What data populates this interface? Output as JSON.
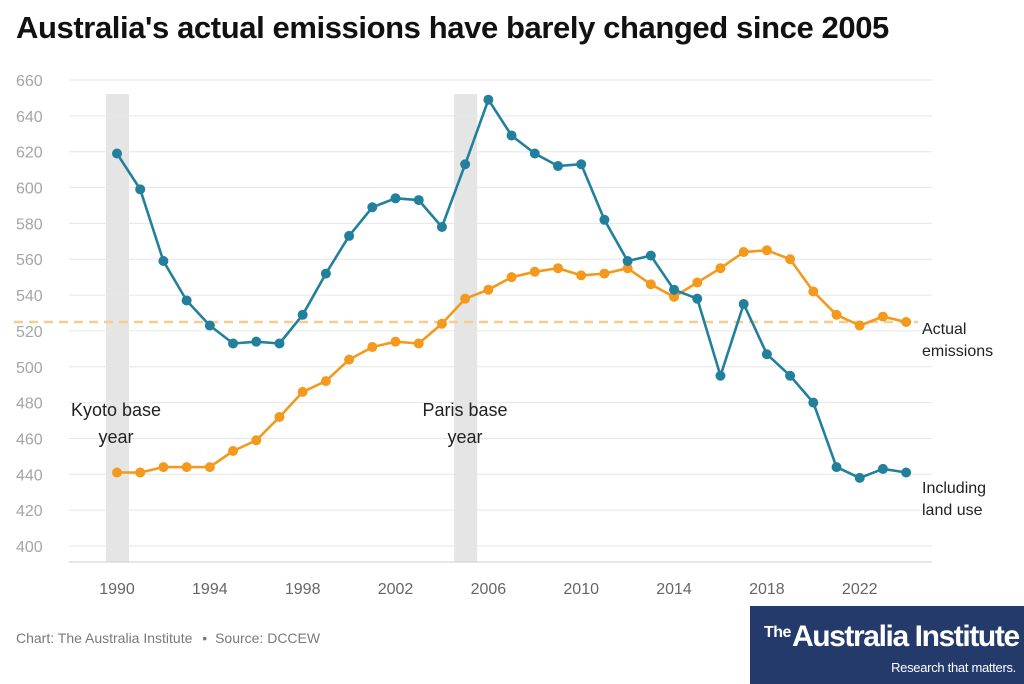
{
  "title": "Australia's actual emissions have barely changed since 2005",
  "source": {
    "chart_credit": "Chart: The Australia Institute",
    "separator": "•",
    "data_source": "Source: DCCEW"
  },
  "logo": {
    "the": "The",
    "name": "Australia Institute",
    "tagline": "Research that matters."
  },
  "colors": {
    "actual": "#f39a1e",
    "landuse": "#23809c",
    "reference": "#f7cd8d",
    "band": "#e5e5e5",
    "grid": "#e6e6e6",
    "background": "#ffffff"
  },
  "chart_data": {
    "type": "line",
    "title": "Australia's actual emissions have barely changed since 2005",
    "xlabel": "",
    "ylabel": "",
    "xlim": [
      1988.5,
      2024.5
    ],
    "ylim": [
      400,
      660
    ],
    "yticks": [
      400,
      420,
      440,
      460,
      480,
      500,
      520,
      540,
      560,
      580,
      600,
      620,
      640,
      660
    ],
    "xticks": [
      1990,
      1994,
      1998,
      2002,
      2006,
      2010,
      2014,
      2018,
      2022
    ],
    "grid": "horizontal",
    "x": [
      1990,
      1991,
      1992,
      1993,
      1994,
      1995,
      1996,
      1997,
      1998,
      1999,
      2000,
      2001,
      2002,
      2003,
      2004,
      2005,
      2006,
      2007,
      2008,
      2009,
      2010,
      2011,
      2012,
      2013,
      2014,
      2015,
      2016,
      2017,
      2018,
      2019,
      2020,
      2021,
      2022,
      2023,
      2024
    ],
    "series": [
      {
        "name": "Actual emissions",
        "label_lines": [
          "Actual",
          "emissions"
        ],
        "values": [
          441,
          441,
          444,
          444,
          444,
          453,
          459,
          472,
          486,
          492,
          504,
          511,
          514,
          513,
          524,
          538,
          543,
          550,
          553,
          555,
          551,
          552,
          555,
          546,
          539,
          547,
          555,
          564,
          565,
          560,
          542,
          529,
          523,
          528,
          525
        ]
      },
      {
        "name": "Including land use",
        "label_lines": [
          "Including",
          "land use"
        ],
        "values": [
          619,
          599,
          559,
          537,
          523,
          513,
          514,
          513,
          529,
          552,
          573,
          589,
          594,
          593,
          578,
          613,
          649,
          629,
          619,
          612,
          613,
          582,
          559,
          562,
          543,
          538,
          495,
          535,
          507,
          495,
          480,
          444,
          438,
          443,
          441
        ]
      }
    ],
    "reference_line": {
      "value": 525,
      "style": "dashed"
    },
    "bands": [
      {
        "year": 1990,
        "label_lines": [
          "Kyoto base",
          "year"
        ]
      },
      {
        "year": 2005,
        "label_lines": [
          "Paris base",
          "year"
        ]
      }
    ]
  }
}
